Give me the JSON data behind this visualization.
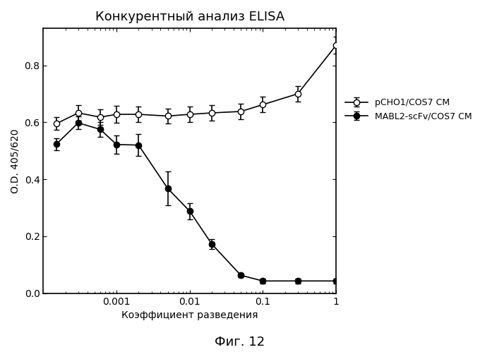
{
  "title": "Конкурентный анализ ELISA",
  "subtitle": "Фиг. 12",
  "xlabel": "Коэффициент разведения",
  "ylabel": "O.D. 405/620",
  "ylim": [
    0,
    0.93
  ],
  "yticks": [
    0,
    0.2,
    0.4,
    0.6,
    0.8
  ],
  "x_open": [
    0.00015,
    0.0003,
    0.0006,
    0.001,
    0.002,
    0.005,
    0.01,
    0.02,
    0.05,
    0.1,
    0.3,
    1.0
  ],
  "y_open": [
    0.595,
    0.633,
    0.618,
    0.628,
    0.628,
    0.622,
    0.628,
    0.633,
    0.638,
    0.662,
    0.7,
    0.87
  ],
  "yerr_open": [
    0.022,
    0.027,
    0.027,
    0.03,
    0.027,
    0.027,
    0.027,
    0.027,
    0.027,
    0.027,
    0.027,
    0.03
  ],
  "x_filled": [
    0.00015,
    0.0003,
    0.0006,
    0.001,
    0.002,
    0.005,
    0.01,
    0.02,
    0.05,
    0.1,
    0.3,
    1.0
  ],
  "y_filled": [
    0.523,
    0.598,
    0.575,
    0.522,
    0.52,
    0.368,
    0.288,
    0.173,
    0.063,
    0.043,
    0.043,
    0.043
  ],
  "yerr_filled": [
    0.022,
    0.022,
    0.027,
    0.032,
    0.038,
    0.06,
    0.028,
    0.018,
    0.008,
    0.008,
    0.008,
    0.008
  ],
  "legend_open": "pCHO1/COS7 CM",
  "legend_filled": "MABL2-scFv/COS7 CM",
  "line_color": "#000000",
  "marker_size": 6,
  "line_width": 1.2,
  "background_color": "#ffffff",
  "figure_background": "#ffffff",
  "xlim_left": 0.0001,
  "xlim_right": 1.0,
  "xticks": [
    0.001,
    0.01,
    0.1,
    1
  ],
  "xticklabels": [
    "0.001",
    "0.01",
    "0.1",
    "1"
  ]
}
